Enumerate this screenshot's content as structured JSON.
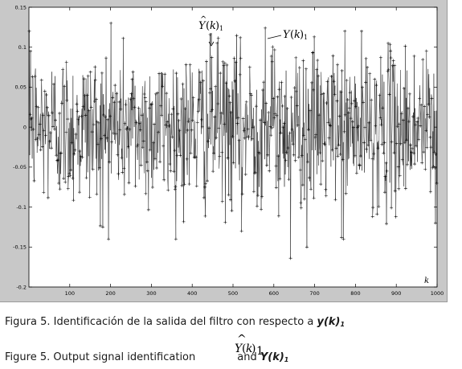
{
  "chart_data": {
    "type": "line",
    "title": "",
    "xlabel": "k",
    "ylabel": "",
    "xlim": [
      0,
      1000
    ],
    "ylim": [
      -0.2,
      0.15
    ],
    "xticks": [
      "100",
      "200",
      "300",
      "400",
      "500",
      "600",
      "700",
      "800",
      "900",
      "1000"
    ],
    "xtick_values": [
      100,
      200,
      300,
      400,
      500,
      600,
      700,
      800,
      900,
      1000
    ],
    "yticks": [
      "0.15",
      "0.1",
      "0.05",
      "0",
      "-0.05",
      "-0.1",
      "-0.15",
      "-0.2"
    ],
    "ytick_values": [
      0.15,
      0.1,
      0.05,
      0,
      -0.05,
      -0.1,
      -0.15,
      -0.2
    ],
    "series": [
      {
        "kind": "line",
        "style": "solid black line",
        "n_points": 1000,
        "seed": 12345,
        "noise_std": 0.048,
        "peaks": [
          {
            "x": 640,
            "y": -0.164
          },
          {
            "x": 578,
            "y": 0.124
          },
          {
            "x": 460,
            "y": 0.105
          },
          {
            "x": 180,
            "y": -0.125
          },
          {
            "x": 520,
            "y": -0.13
          },
          {
            "x": 995,
            "y": -0.12
          },
          {
            "x": 3,
            "y": 0.095
          },
          {
            "x": 200,
            "y": 0.13
          },
          {
            "x": 770,
            "y": -0.14
          },
          {
            "x": 680,
            "y": -0.15
          }
        ]
      },
      {
        "kind": "marker",
        "marker": "+",
        "note": "same signal, plotted with plus markers"
      }
    ],
    "annotations": {
      "yhat_label": "Y(k)1 hat",
      "y_label": "Y(k)1"
    },
    "grid": false,
    "background": "#ffffff",
    "frame_color": "#c8c8c8"
  },
  "annotation_text": {
    "Y": "Y",
    "k_open": "(",
    "k": "k",
    "k_close": ")",
    "sub1": "1",
    "hat": "^"
  },
  "captions": {
    "spanish_prefix": "Figura 5. Identificación de la salida del filtro con respecto a ",
    "spanish_var": "y(k)",
    "spanish_sub": "1",
    "english_prefix": "Figure 5. Output signal identification",
    "english_and": "and ",
    "english_var": "Y(k)",
    "english_sub": "1"
  }
}
